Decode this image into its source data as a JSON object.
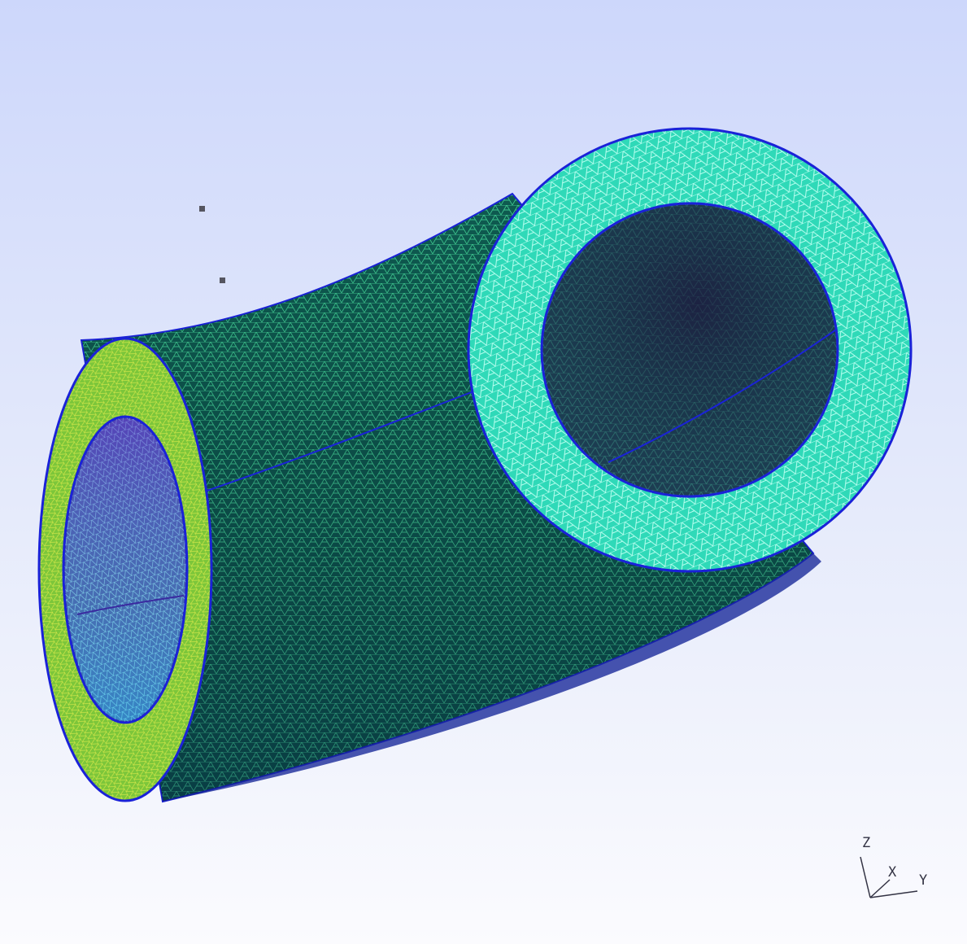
{
  "viewer": {
    "mesh_colors": {
      "outer_dark": "#0b4a45",
      "outer_mid": "#136c5c",
      "wire_green": "#3ecf8f",
      "end_face_green": "#7ccf3a",
      "end_face_cyan": "#3af0cf",
      "edge_blue": "#1a22d8",
      "inner_dark": "#2a2a66"
    }
  },
  "axes": {
    "z_label": "Z",
    "x_label": "X",
    "y_label": "Y"
  }
}
